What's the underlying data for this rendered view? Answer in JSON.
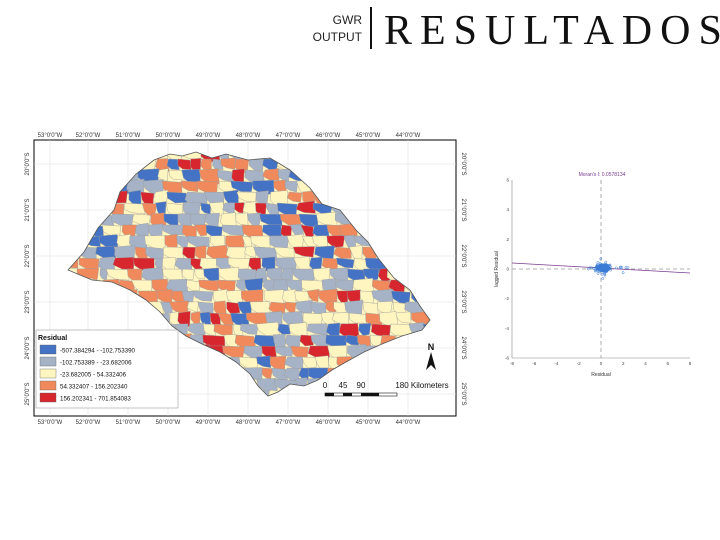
{
  "header": {
    "line1": "GWR",
    "line2": "OUTPUT",
    "title": "RESULTADOS"
  },
  "map": {
    "lon_ticks": [
      "53°0'0\"W",
      "52°0'0\"W",
      "51°0'0\"W",
      "50°0'0\"W",
      "49°0'0\"W",
      "48°0'0\"W",
      "47°0'0\"W",
      "46°0'0\"W",
      "45°0'0\"W",
      "44°0'0\"W"
    ],
    "lat_ticks": [
      "20°0'0\"S",
      "21°0'0\"S",
      "22°0'0\"S",
      "23°0'0\"S",
      "24°0'0\"S",
      "25°0'0\"S"
    ],
    "legend": {
      "title": "Residual",
      "classes": [
        {
          "label": "-507.384294 - -102.753390",
          "color": "#4472c4"
        },
        {
          "label": "-102.753389 - -23.682006",
          "color": "#a6b3c6"
        },
        {
          "label": "-23.682005 - 54.332406",
          "color": "#fff5c0"
        },
        {
          "label": "54.332407 - 156.202340",
          "color": "#f08a5d"
        },
        {
          "label": "156.202341 - 701.854083",
          "color": "#d7262e"
        }
      ]
    },
    "north_label": "N",
    "scale": {
      "labels": [
        "0",
        "45",
        "90",
        "180 Kilometers"
      ]
    },
    "colors": {
      "border": "#000000",
      "district_line": "#999999"
    }
  },
  "scatter": {
    "title": "Moran's I: 0.0578134",
    "xlabel": "Residual",
    "ylabel": "lagged Residual",
    "x_ticks": [
      "-8",
      "-6",
      "-4",
      "-2",
      "0",
      "2",
      "4",
      "6",
      "8"
    ],
    "y_ticks": [
      "6",
      "4",
      "2",
      "0",
      "-2",
      "-4",
      "-6"
    ],
    "colors": {
      "points": "#3a7bd5",
      "fit_line": "#7a3b8f",
      "title": "#7a3b8f"
    }
  }
}
